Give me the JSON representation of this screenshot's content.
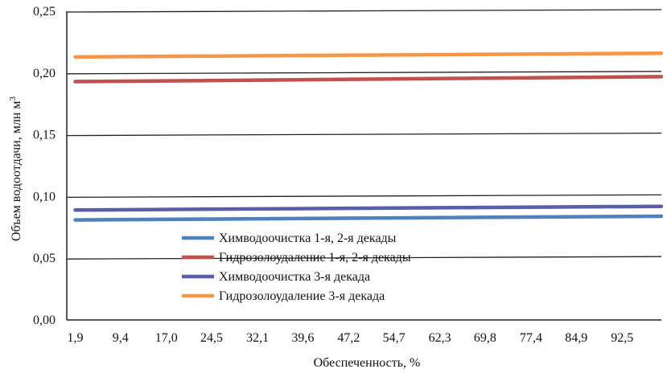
{
  "chart_data": {
    "type": "line",
    "xlabel": "Обеспеченность, %",
    "ylabel": "Объем водоотдачи, млн м",
    "ylabel_sup": "3",
    "categories": [
      "1,9",
      "9,4",
      "17,0",
      "24,5",
      "32,1",
      "39,6",
      "47,2",
      "54,7",
      "62,3",
      "69,8",
      "77,4",
      "84,9",
      "92,5"
    ],
    "x_start": 1.9,
    "x_end": 99.0,
    "ylim": [
      0,
      0.25
    ],
    "yticks": [
      "0,00",
      "0,05",
      "0,10",
      "0,15",
      "0,20",
      "0,25"
    ],
    "grid": "horizontal",
    "legend_position": "bottom-left",
    "series": [
      {
        "name": "Химводоочистка 1-я, 2-я декады",
        "color": "#4F81BD",
        "start": 0.081,
        "end": 0.084
      },
      {
        "name": "Гидрозолоудаление 1-я, 2-я декады",
        "color": "#C0504D",
        "start": 0.193,
        "end": 0.197
      },
      {
        "name": "Химводоочистка 3-я декада",
        "color": "#5B5FA8",
        "start": 0.089,
        "end": 0.092
      },
      {
        "name": "Гидрозолоудаление 3-я декада",
        "color": "#F79646",
        "start": 0.213,
        "end": 0.216
      }
    ]
  }
}
